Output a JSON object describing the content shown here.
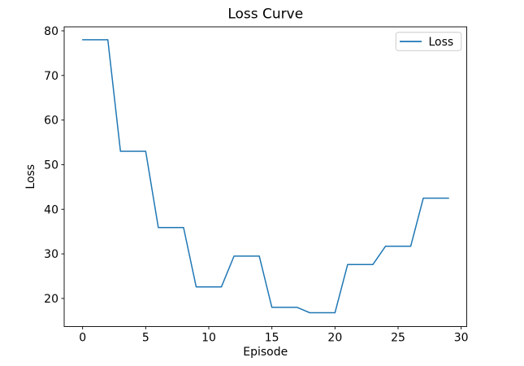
{
  "figure": {
    "background": "#ffffff"
  },
  "chart_data": {
    "type": "line",
    "title": "Loss Curve",
    "xlabel": "Episode",
    "ylabel": "Loss",
    "legend": [
      "Loss"
    ],
    "legend_position": "upper right",
    "grid": false,
    "line_color": "#1f77b4",
    "line_width": 1.5,
    "spine_color": "#000000",
    "legend_border_color": "#cccccc",
    "xlim": [
      -1.46,
      30.44
    ],
    "ylim": [
      13.7,
      80.9
    ],
    "xticks": [
      0,
      5,
      10,
      15,
      20,
      25,
      30
    ],
    "yticks": [
      20,
      30,
      40,
      50,
      60,
      70,
      80
    ],
    "x": [
      0,
      1,
      2,
      3,
      4,
      5,
      6,
      7,
      8,
      9,
      10,
      11,
      12,
      13,
      14,
      15,
      16,
      17,
      18,
      19,
      20,
      21,
      22,
      23,
      24,
      25,
      26,
      27,
      28,
      29
    ],
    "y": [
      78.0,
      78.0,
      78.0,
      53.0,
      53.0,
      53.0,
      35.9,
      35.9,
      35.9,
      22.6,
      22.6,
      22.6,
      29.5,
      29.5,
      29.5,
      18.0,
      18.0,
      18.0,
      16.8,
      16.8,
      16.8,
      27.6,
      27.6,
      27.6,
      31.7,
      31.7,
      31.7,
      42.5,
      42.5,
      42.5
    ]
  }
}
